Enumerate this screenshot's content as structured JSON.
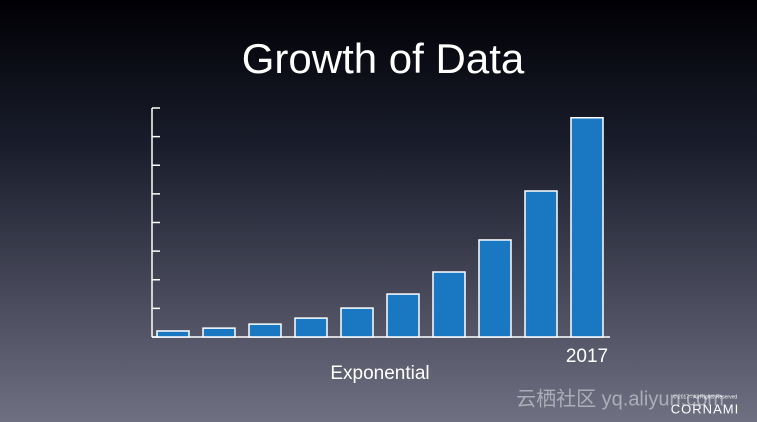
{
  "chart_data": {
    "type": "bar",
    "title": "Growth of Data",
    "x_label": "Exponential",
    "categories": [
      null,
      null,
      null,
      null,
      null,
      null,
      null,
      null,
      null,
      "2017"
    ],
    "values": [
      0.21,
      0.31,
      0.45,
      0.66,
      1.01,
      1.5,
      2.27,
      3.39,
      5.1,
      7.66
    ],
    "color": "#1a78c2",
    "ylim": [
      0,
      8
    ],
    "yticks": [
      0,
      1,
      2,
      3,
      4,
      5,
      6,
      7,
      8
    ]
  },
  "watermark": "云栖社区 yq.aliyun.com",
  "copyright": "© 2017 - All Rights Reserved",
  "brand": "CORNAMI"
}
